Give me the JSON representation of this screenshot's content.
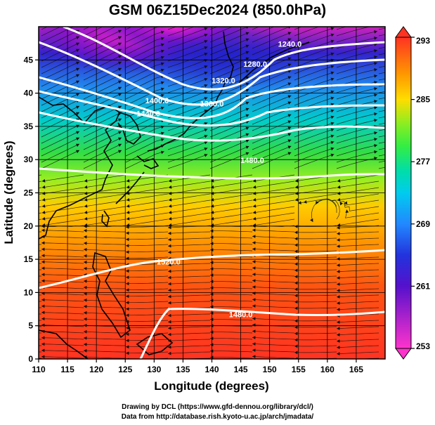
{
  "title": "GSM 06Z15Dec2024 (850.0hPa)",
  "xlabel": "Longitude (degrees)",
  "ylabel": "Latitude  (degrees)",
  "credits": {
    "line1": "Drawing by DCL (https://www.gfd-dennou.org/library/dcl/)",
    "line2": "Data from http://database.rish.kyoto-u.ac.jp/arch/jmadata/"
  },
  "chart_data": {
    "type": "heatmap",
    "title": "GSM 06Z15Dec2024 (850.0hPa)",
    "xlabel": "Longitude (degrees)",
    "ylabel": "Latitude  (degrees)",
    "xlim": [
      110,
      170
    ],
    "ylim": [
      0,
      50
    ],
    "xticks": [
      110,
      115,
      120,
      125,
      130,
      135,
      140,
      145,
      150,
      155,
      160,
      165
    ],
    "yticks": [
      0,
      5,
      10,
      15,
      20,
      25,
      30,
      35,
      40,
      45
    ],
    "grid": true,
    "colorbar": {
      "min": 253,
      "max": 293,
      "ticks": [
        253,
        261,
        269,
        277,
        285,
        293
      ]
    },
    "contour_labels": [
      {
        "text": "1240.0",
        "lon": 153.5,
        "lat": 47.0
      },
      {
        "text": "1280.0",
        "lon": 147.5,
        "lat": 44.0
      },
      {
        "text": "1320.0",
        "lon": 142.0,
        "lat": 41.5
      },
      {
        "text": "1360.0",
        "lon": 140.0,
        "lat": 38.0
      },
      {
        "text": "1400.0",
        "lon": 130.5,
        "lat": 38.5
      },
      {
        "text": "1440.0",
        "lon": 129.0,
        "lat": 36.5
      },
      {
        "text": "1480.0",
        "lon": 147.0,
        "lat": 29.5
      },
      {
        "text": "1520.0",
        "lon": 132.5,
        "lat": 14.2
      },
      {
        "text": "1480.0",
        "lon": 145.0,
        "lat": 6.3
      }
    ]
  },
  "colors": {
    "colorbar": [
      "#ff33cc",
      "#8800cc",
      "#2222dd",
      "#2288ff",
      "#00ddcc",
      "#33ee55",
      "#99ee22",
      "#ffdd00",
      "#ff8800",
      "#ff3322"
    ]
  }
}
